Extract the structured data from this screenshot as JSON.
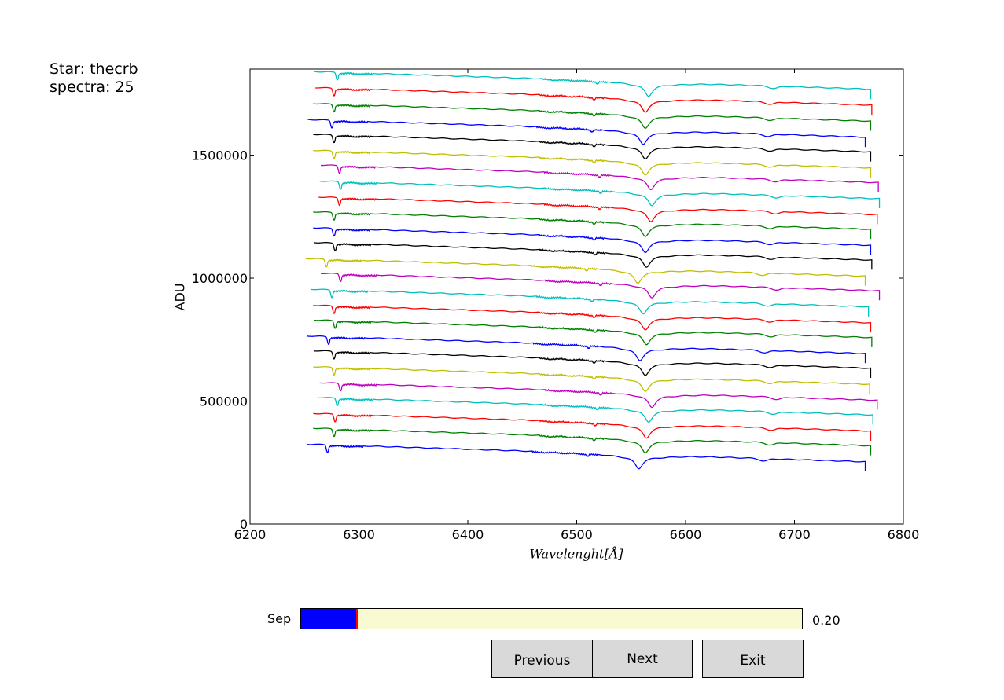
{
  "info": {
    "star_line": "Star: thecrb",
    "spectra_line": "spectra: 25"
  },
  "slider": {
    "label": "Sep",
    "value_text": "0.20",
    "fraction": 0.113
  },
  "buttons": {
    "previous": "Previous",
    "next": "Next",
    "exit": "Exit"
  },
  "chart_data": {
    "type": "line",
    "title": "",
    "xlabel": "Wavelenght[Å]",
    "ylabel": "ADU",
    "xlim": [
      6200,
      6800
    ],
    "ylim": [
      0,
      1850000
    ],
    "xticks": [
      6200,
      6300,
      6400,
      6500,
      6600,
      6700,
      6800
    ],
    "yticks": [
      0,
      500000,
      1000000,
      1500000
    ],
    "xtick_labels": [
      "6200",
      "6300",
      "6400",
      "6500",
      "6600",
      "6700",
      "6800"
    ],
    "ytick_labels": [
      "0",
      "500000",
      "1000000",
      "1500000"
    ],
    "grid": false,
    "legend": "none",
    "num_series": 25,
    "series_shape": {
      "halpha_center": 6563,
      "halpha_depth": 45000,
      "line_6678_depth": 10000,
      "slope_per_angstrom": -140
    },
    "series": [
      {
        "color": "#0000ff",
        "x_start": 6252,
        "x_end": 6765,
        "y_start": 325000,
        "shift": -6
      },
      {
        "color": "#008000",
        "x_start": 6258,
        "x_end": 6770,
        "y_start": 390000,
        "shift": 0
      },
      {
        "color": "#ff0000",
        "x_start": 6258,
        "x_end": 6770,
        "y_start": 450000,
        "shift": 1
      },
      {
        "color": "#00bfbf",
        "x_start": 6262,
        "x_end": 6772,
        "y_start": 515000,
        "shift": 3
      },
      {
        "color": "#bf00bf",
        "x_start": 6264,
        "x_end": 6776,
        "y_start": 575000,
        "shift": 6
      },
      {
        "color": "#bfbf00",
        "x_start": 6258,
        "x_end": 6769,
        "y_start": 640000,
        "shift": 0
      },
      {
        "color": "#000000",
        "x_start": 6259,
        "x_end": 6770,
        "y_start": 705000,
        "shift": 0
      },
      {
        "color": "#0000ff",
        "x_start": 6252,
        "x_end": 6765,
        "y_start": 765000,
        "shift": -5
      },
      {
        "color": "#008000",
        "x_start": 6259,
        "x_end": 6771,
        "y_start": 830000,
        "shift": 1
      },
      {
        "color": "#ff0000",
        "x_start": 6258,
        "x_end": 6770,
        "y_start": 890000,
        "shift": 0
      },
      {
        "color": "#00bfbf",
        "x_start": 6256,
        "x_end": 6768,
        "y_start": 955000,
        "shift": -2
      },
      {
        "color": "#bf00bf",
        "x_start": 6265,
        "x_end": 6778,
        "y_start": 1020000,
        "shift": 6
      },
      {
        "color": "#bfbf00",
        "x_start": 6251,
        "x_end": 6765,
        "y_start": 1080000,
        "shift": -7
      },
      {
        "color": "#000000",
        "x_start": 6259,
        "x_end": 6771,
        "y_start": 1145000,
        "shift": 1
      },
      {
        "color": "#0000ff",
        "x_start": 6258,
        "x_end": 6770,
        "y_start": 1205000,
        "shift": 0
      },
      {
        "color": "#008000",
        "x_start": 6258,
        "x_end": 6770,
        "y_start": 1270000,
        "shift": 0
      },
      {
        "color": "#ff0000",
        "x_start": 6263,
        "x_end": 6776,
        "y_start": 1330000,
        "shift": 5
      },
      {
        "color": "#00bfbf",
        "x_start": 6264,
        "x_end": 6778,
        "y_start": 1395000,
        "shift": 6
      },
      {
        "color": "#bf00bf",
        "x_start": 6265,
        "x_end": 6777,
        "y_start": 1460000,
        "shift": 5
      },
      {
        "color": "#bfbf00",
        "x_start": 6258,
        "x_end": 6770,
        "y_start": 1520000,
        "shift": 0
      },
      {
        "color": "#000000",
        "x_start": 6258,
        "x_end": 6770,
        "y_start": 1585000,
        "shift": 0
      },
      {
        "color": "#0000ff",
        "x_start": 6253,
        "x_end": 6765,
        "y_start": 1645000,
        "shift": -2
      },
      {
        "color": "#008000",
        "x_start": 6258,
        "x_end": 6770,
        "y_start": 1710000,
        "shift": 0
      },
      {
        "color": "#ff0000",
        "x_start": 6260,
        "x_end": 6771,
        "y_start": 1775000,
        "shift": 0
      },
      {
        "color": "#00bfbf",
        "x_start": 6259,
        "x_end": 6770,
        "y_start": 1840000,
        "shift": 3
      }
    ]
  }
}
